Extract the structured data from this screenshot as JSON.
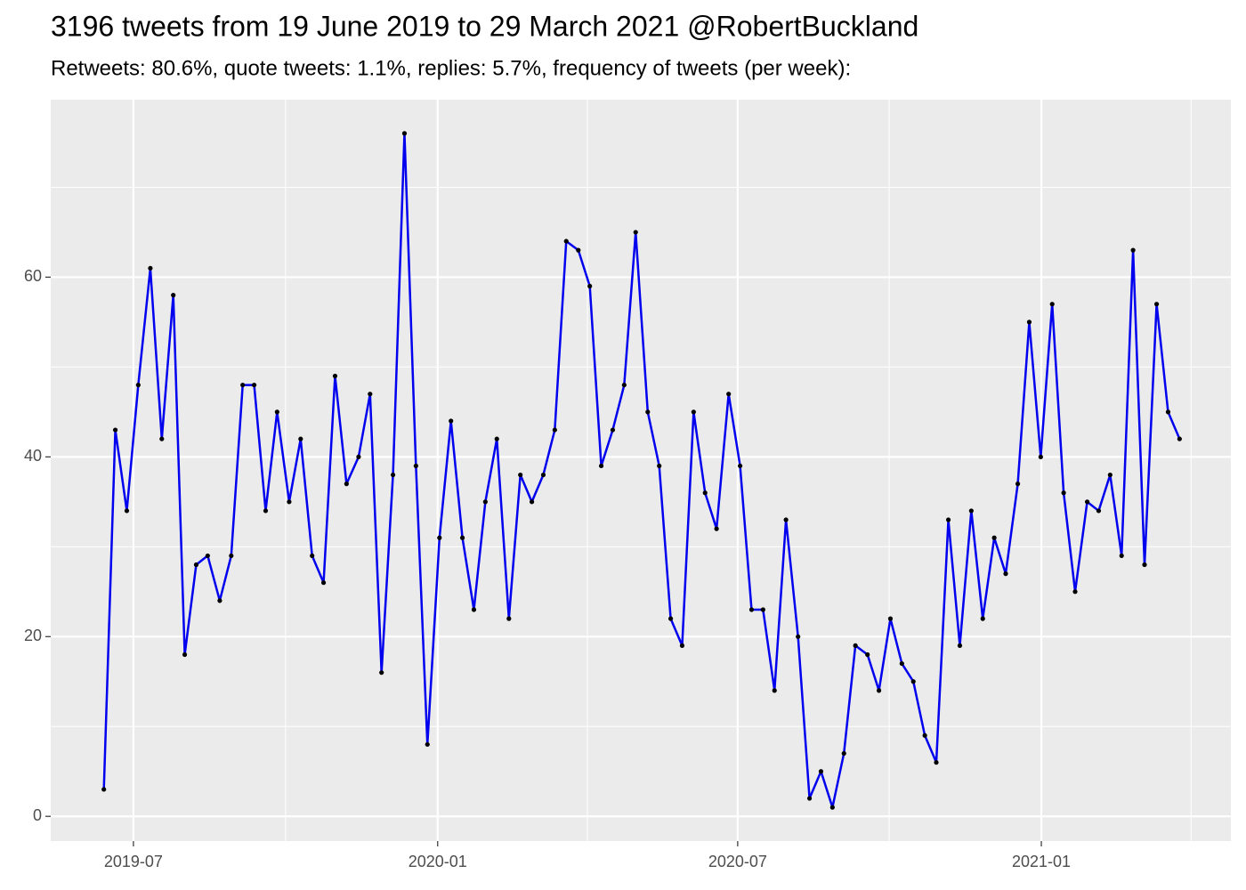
{
  "chart_data": {
    "type": "line",
    "title": "3196 tweets from 19 June 2019 to 29 March 2021 @RobertBuckland",
    "subtitle": "Retweets: 80.6%, quote tweets: 1.1%, replies: 5.7%, frequency of tweets (per week):",
    "x": [
      2019.447,
      2019.466,
      2019.485,
      2019.504,
      2019.524,
      2019.543,
      2019.562,
      2019.581,
      2019.6,
      2019.619,
      2019.639,
      2019.658,
      2019.677,
      2019.696,
      2019.715,
      2019.734,
      2019.754,
      2019.773,
      2019.792,
      2019.811,
      2019.83,
      2019.849,
      2019.869,
      2019.888,
      2019.907,
      2019.926,
      2019.945,
      2019.964,
      2019.983,
      2020.003,
      2020.022,
      2020.041,
      2020.06,
      2020.079,
      2020.098,
      2020.118,
      2020.137,
      2020.156,
      2020.175,
      2020.194,
      2020.213,
      2020.233,
      2020.252,
      2020.271,
      2020.29,
      2020.309,
      2020.328,
      2020.348,
      2020.367,
      2020.386,
      2020.405,
      2020.424,
      2020.443,
      2020.462,
      2020.482,
      2020.501,
      2020.52,
      2020.539,
      2020.558,
      2020.577,
      2020.597,
      2020.616,
      2020.635,
      2020.654,
      2020.673,
      2020.692,
      2020.712,
      2020.731,
      2020.75,
      2020.769,
      2020.788,
      2020.807,
      2020.826,
      2020.846,
      2020.865,
      2020.884,
      2020.903,
      2020.922,
      2020.941,
      2020.961,
      2020.98,
      2020.999,
      2021.018,
      2021.037,
      2021.056,
      2021.076,
      2021.095,
      2021.114,
      2021.133,
      2021.152,
      2021.171,
      2021.191,
      2021.21,
      2021.229
    ],
    "values": [
      3,
      43,
      34,
      48,
      61,
      42,
      58,
      18,
      28,
      29,
      24,
      29,
      48,
      48,
      34,
      45,
      35,
      42,
      29,
      26,
      49,
      37,
      40,
      47,
      16,
      38,
      76,
      39,
      8,
      31,
      44,
      31,
      23,
      35,
      42,
      22,
      38,
      35,
      38,
      43,
      64,
      63,
      59,
      39,
      43,
      48,
      65,
      45,
      39,
      22,
      19,
      45,
      36,
      32,
      47,
      39,
      23,
      23,
      14,
      33,
      20,
      2,
      5,
      1,
      7,
      19,
      18,
      14,
      22,
      17,
      15,
      9,
      6,
      33,
      19,
      34,
      22,
      31,
      27,
      37,
      55,
      40,
      57,
      36,
      25,
      35,
      34,
      38,
      29,
      63,
      28,
      57,
      45,
      42
    ],
    "color": "#0000ee",
    "point_color": "#000000",
    "xlim": [
      2019.359,
      2021.314
    ],
    "xticks": [
      {
        "value": 2019.496,
        "label": "2019-07"
      },
      {
        "value": 2020.0,
        "label": "2020-01"
      },
      {
        "value": 2020.497,
        "label": "2020-07"
      },
      {
        "value": 2021.0,
        "label": "2021-01"
      }
    ],
    "x_minor_grid": [
      2019.748,
      2020.248,
      2020.748,
      2021.248
    ],
    "ylim": [
      -2.75,
      79.75
    ],
    "yticks": [
      0,
      20,
      40,
      60
    ],
    "y_minor_grid": [
      10,
      30,
      50,
      70
    ],
    "grid": true
  }
}
